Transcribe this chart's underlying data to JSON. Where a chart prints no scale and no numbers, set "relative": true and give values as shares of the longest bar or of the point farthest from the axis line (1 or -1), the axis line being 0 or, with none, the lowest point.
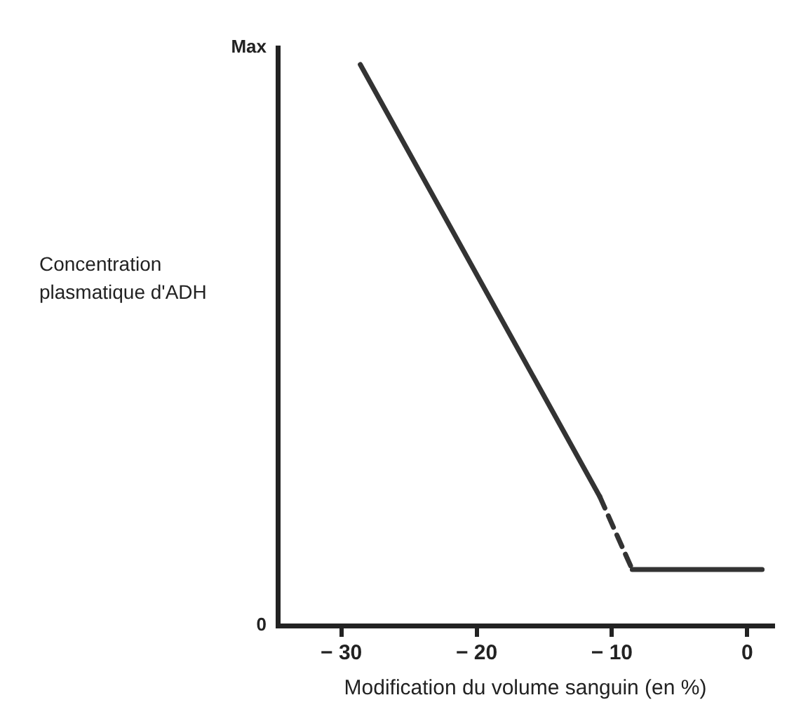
{
  "chart_data": {
    "type": "line",
    "relative": true,
    "xlabel": "Modification du volume sanguin (en %)",
    "ylabel": "Concentration plasmatique d'ADH",
    "xlim": [
      -34.7,
      1.9
    ],
    "xticks": [
      {
        "value": -30,
        "label": "− 30"
      },
      {
        "value": -20,
        "label": "− 20"
      },
      {
        "value": -10,
        "label": "− 10"
      },
      0
    ],
    "annotations": [
      "Max",
      "0"
    ],
    "series": [
      {
        "color": "#333333",
        "x": [
          -28.6,
          -10.9
        ],
        "values": [
          1,
          0.23
        ],
        "line_style": "solid"
      },
      {
        "color": "#333333",
        "x": [
          -10.9,
          -8.5
        ],
        "values": [
          0.23,
          0.1
        ],
        "line_style": "dashed"
      },
      {
        "color": "#333333",
        "x": [
          -8.5,
          1.1
        ],
        "values": [
          0.1,
          0.1
        ],
        "line_style": "solid"
      }
    ],
    "grid": false,
    "legend": false,
    "marker": "none"
  }
}
